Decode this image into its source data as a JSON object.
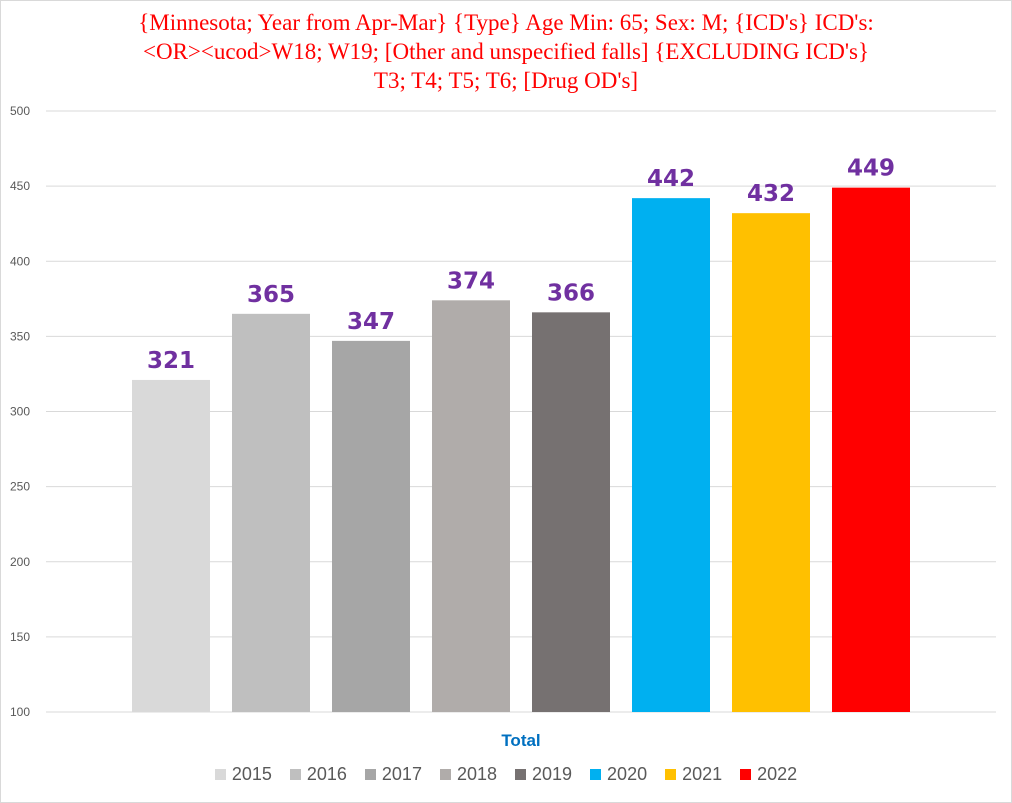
{
  "chart_data": {
    "type": "bar",
    "title_lines": [
      "{Minnesota; Year from Apr-Mar} {Type} Age Min: 65; Sex: M; {ICD's} ICD's:",
      "<OR><ucod>W18; W19; [Other and unspecified falls] {EXCLUDING ICD's}",
      "T3; T4; T5; T6; [Drug OD's]"
    ],
    "title_color": "#ff0000",
    "categories": [
      "Total"
    ],
    "xlabel": "Total",
    "xlabel_color": "#0070c0",
    "ylim": [
      100,
      500
    ],
    "yticks": [
      100,
      150,
      200,
      250,
      300,
      350,
      400,
      450,
      500
    ],
    "grid": true,
    "legend_position": "bottom",
    "data_label_color": "#7030a0",
    "series": [
      {
        "name": "2015",
        "values": [
          321
        ],
        "color": "#d9d9d9"
      },
      {
        "name": "2016",
        "values": [
          365
        ],
        "color": "#bfbfbf"
      },
      {
        "name": "2017",
        "values": [
          347
        ],
        "color": "#a6a6a6"
      },
      {
        "name": "2018",
        "values": [
          374
        ],
        "color": "#b0acaa"
      },
      {
        "name": "2019",
        "values": [
          366
        ],
        "color": "#767171"
      },
      {
        "name": "2020",
        "values": [
          442
        ],
        "color": "#00b0f0"
      },
      {
        "name": "2021",
        "values": [
          432
        ],
        "color": "#ffc000"
      },
      {
        "name": "2022",
        "values": [
          449
        ],
        "color": "#ff0000"
      }
    ]
  }
}
